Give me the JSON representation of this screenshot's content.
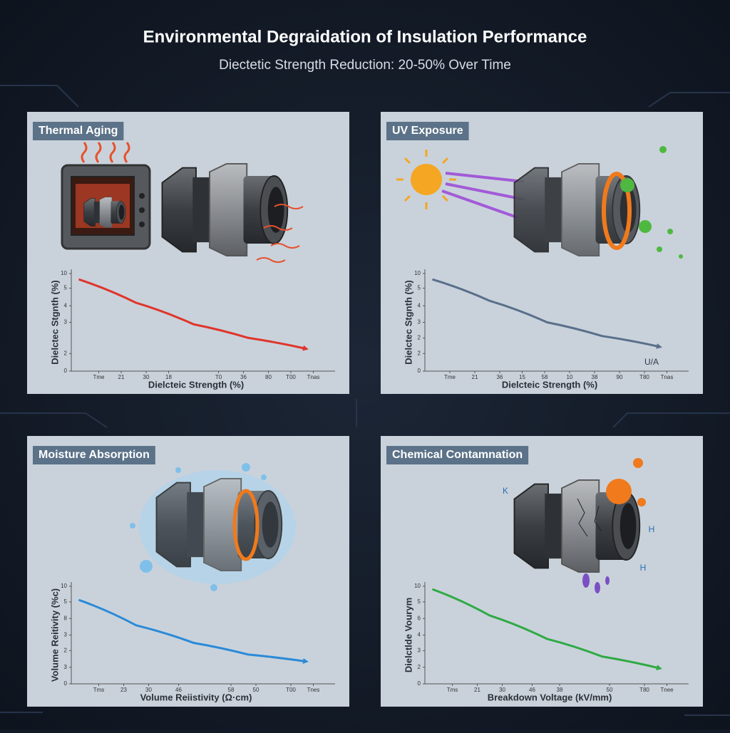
{
  "title": "Environmental Degraidation of Insulation Performance",
  "subtitle": "Diectetic Strength Reduction: 20-50% Over Time",
  "chart_data": [
    {
      "type": "line",
      "title": "Thermal Aging",
      "x_label": "Dielcteic Strength (%)",
      "y_label": "Dielctec Stgnth (%)",
      "xlim": [
        0,
        10
      ],
      "ylim": [
        0,
        10
      ],
      "xticks": [
        {
          "value": 1.1,
          "label": "Tme"
        },
        {
          "value": 2,
          "label": "21"
        },
        {
          "value": 3,
          "label": "30"
        },
        {
          "value": 3.9,
          "label": "18"
        },
        {
          "value": 5.9,
          "label": "T0"
        },
        {
          "value": 6.9,
          "label": "36"
        },
        {
          "value": 7.9,
          "label": "80"
        },
        {
          "value": 8.8,
          "label": "T00"
        },
        {
          "value": 9.7,
          "label": "Tnas"
        }
      ],
      "yticks": [
        0,
        {
          "value": 1.8,
          "label": "2"
        },
        {
          "value": 5,
          "label": "3"
        },
        {
          "value": 6.7,
          "label": "4"
        },
        {
          "value": 8.5,
          "label": "5"
        },
        10
      ],
      "series": [
        {
          "color": "#e0352b",
          "x": [
            0.3,
            2.6,
            4.9,
            7.1,
            9.4
          ],
          "values": [
            9.4,
            7.0,
            4.8,
            3.4,
            2.3
          ]
        }
      ]
    },
    {
      "type": "line",
      "title": "UV Exposure",
      "x_label": "Dielcteic Strength (%)",
      "y_label": "Dielctec Stgnth (%)",
      "xlim": [
        0,
        10
      ],
      "ylim": [
        0,
        10
      ],
      "xticks": [
        {
          "value": 1,
          "label": "Tme"
        },
        {
          "value": 2,
          "label": "21"
        },
        {
          "value": 3,
          "label": "36"
        },
        {
          "value": 3.9,
          "label": "15"
        },
        {
          "value": 4.8,
          "label": "58"
        },
        {
          "value": 5.8,
          "label": "10"
        },
        {
          "value": 6.8,
          "label": "38"
        },
        {
          "value": 7.8,
          "label": "90"
        },
        {
          "value": 8.8,
          "label": "T80"
        },
        {
          "value": 9.7,
          "label": "Tnas"
        }
      ],
      "yticks": [
        0,
        {
          "value": 1.8,
          "label": "2"
        },
        {
          "value": 3.4,
          "label": "2"
        },
        {
          "value": 5,
          "label": "3"
        },
        {
          "value": 6.7,
          "label": "4"
        },
        {
          "value": 8.5,
          "label": "5"
        },
        10
      ],
      "annotations": [
        "U/A"
      ],
      "series": [
        {
          "color": "#5a6f8a",
          "x": [
            0.3,
            2.6,
            4.9,
            7.1,
            9.4
          ],
          "values": [
            9.4,
            7.2,
            5.0,
            3.6,
            2.5
          ]
        }
      ]
    },
    {
      "type": "line",
      "title": "Moisture Absorption",
      "x_label": "Volume Reiistivity (Ω·cm)",
      "y_label": "Volume Reitivity (%c)",
      "xlim": [
        0,
        10
      ],
      "ylim": [
        0,
        10
      ],
      "xticks": [
        {
          "value": 1.1,
          "label": "Tms"
        },
        {
          "value": 2.1,
          "label": "23"
        },
        {
          "value": 3.1,
          "label": "30"
        },
        {
          "value": 4.3,
          "label": "46"
        },
        {
          "value": 6.4,
          "label": "58"
        },
        {
          "value": 7.4,
          "label": "50"
        },
        {
          "value": 8.8,
          "label": "T00"
        },
        {
          "value": 9.7,
          "label": "Tnes"
        }
      ],
      "yticks": [
        0,
        {
          "value": 1.7,
          "label": "3"
        },
        {
          "value": 3.4,
          "label": "2"
        },
        {
          "value": 5,
          "label": "3"
        },
        {
          "value": 6.7,
          "label": "8"
        },
        {
          "value": 8.4,
          "label": "5"
        },
        10
      ],
      "series": [
        {
          "color": "#2a8ad8",
          "x": [
            0.3,
            2.6,
            4.9,
            7.1,
            9.4
          ],
          "values": [
            8.6,
            6.0,
            4.2,
            3.0,
            2.3
          ]
        }
      ]
    },
    {
      "type": "line",
      "title": "Chemical Contamnation",
      "x_label": "Breakdown Voltage (kV/mm)",
      "y_label": "Dielctlde Vourym",
      "xlim": [
        0,
        10
      ],
      "ylim": [
        0,
        10
      ],
      "xticks": [
        {
          "value": 1.1,
          "label": "Tms"
        },
        {
          "value": 2.1,
          "label": "21"
        },
        {
          "value": 3.1,
          "label": "30"
        },
        {
          "value": 4.3,
          "label": "46"
        },
        {
          "value": 5.4,
          "label": "38"
        },
        {
          "value": 7.4,
          "label": "50"
        },
        {
          "value": 8.8,
          "label": "T80"
        },
        {
          "value": 9.7,
          "label": "Tnee"
        }
      ],
      "yticks": [
        0,
        {
          "value": 1.7,
          "label": "2"
        },
        {
          "value": 3.4,
          "label": "3"
        },
        {
          "value": 5,
          "label": "4"
        },
        {
          "value": 6.7,
          "label": "6"
        },
        {
          "value": 8.4,
          "label": "5"
        },
        10
      ],
      "annotations": [
        "K",
        "H",
        "H"
      ],
      "series": [
        {
          "color": "#2faa44",
          "x": [
            0.3,
            2.6,
            4.9,
            7.1,
            9.4
          ],
          "values": [
            9.7,
            7.0,
            4.6,
            2.8,
            1.6
          ]
        }
      ]
    }
  ]
}
